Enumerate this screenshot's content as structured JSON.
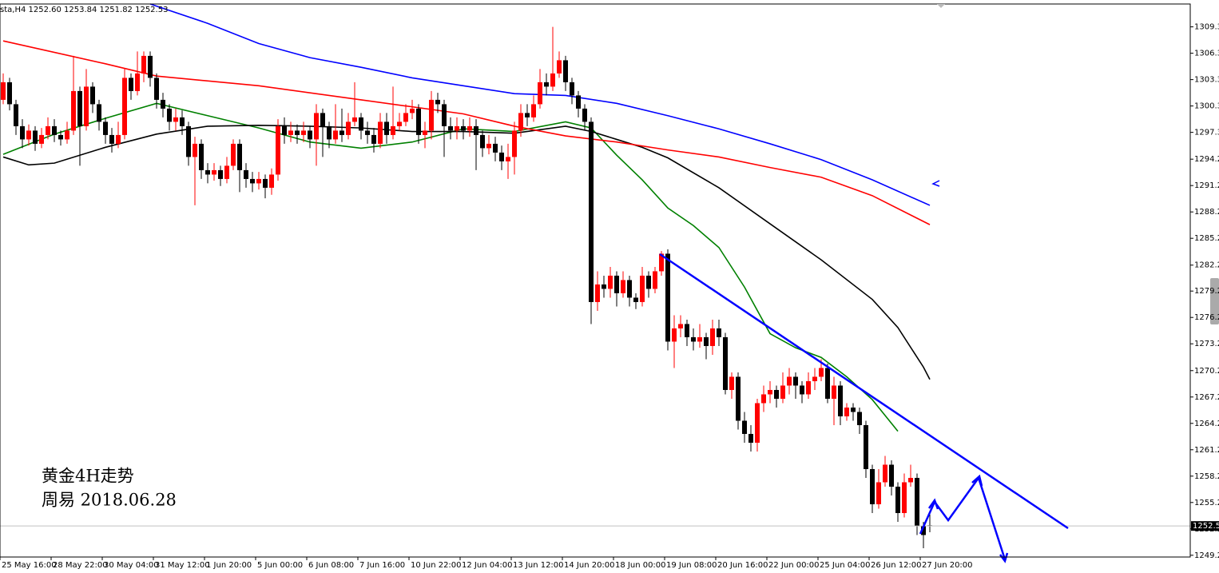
{
  "chart_data": {
    "type": "candlestick",
    "title": "sta,H4 1252.60 1253.84 1251.82 1252.53",
    "annotations": [
      "黄金4H走势",
      "周易 2018.06.28"
    ],
    "up_color": "#ff0000",
    "down_color": "#000000",
    "categories": [
      "25 May 16:00",
      null,
      null,
      null,
      null,
      null,
      null,
      null,
      "28 May 22:00",
      null,
      null,
      null,
      null,
      null,
      null,
      null,
      "30 May 04:00",
      null,
      null,
      null,
      null,
      null,
      null,
      null,
      "31 May 12:00",
      null,
      null,
      null,
      null,
      null,
      null,
      null,
      "1 Jun 20:00",
      null,
      null,
      null,
      null,
      null,
      null,
      null,
      "5 Jun 00:00",
      null,
      null,
      null,
      null,
      null,
      null,
      null,
      "6 Jun 08:00",
      null,
      null,
      null,
      null,
      null,
      null,
      null,
      "7 Jun 16:00",
      null,
      null,
      null,
      null,
      null,
      null,
      null,
      "10 Jun 22:00",
      null,
      null,
      null,
      null,
      null,
      null,
      null,
      "12 Jun 04:00",
      null,
      null,
      null,
      null,
      null,
      null,
      null,
      "13 Jun 12:00",
      null,
      null,
      null,
      null,
      null,
      null,
      null,
      "14 Jun 20:00",
      null,
      null,
      null,
      null,
      null,
      null,
      null,
      "18 Jun 00:00",
      null,
      null,
      null,
      null,
      null,
      null,
      null,
      "19 Jun 08:00",
      null,
      null,
      null,
      null,
      null,
      null,
      null,
      "20 Jun 16:00",
      null,
      null,
      null,
      null,
      null,
      null,
      null,
      "22 Jun 00:00",
      null,
      null,
      null,
      null,
      null,
      null,
      null,
      "25 Jun 04:00",
      null,
      null,
      null,
      null,
      null,
      null,
      null,
      "26 Jun 12:00",
      null,
      null,
      null,
      null,
      null,
      null,
      null,
      "27 Jun 20:00",
      null
    ],
    "open": [
      1301.0,
      1303.0,
      1300.5,
      1298.0,
      1296.5,
      1297.5,
      1296.0,
      1297.0,
      1298.0,
      1297.0,
      1296.5,
      1297.5,
      1302.0,
      1298.0,
      1302.5,
      1300.5,
      1298.5,
      1297.0,
      1296.0,
      1297.0,
      1303.5,
      1302.0,
      1304.0,
      1306.0,
      1303.5,
      1301.0,
      1300.0,
      1298.5,
      1299.0,
      1298.0,
      1294.5,
      1296.0,
      1293.0,
      1292.5,
      1293.0,
      1292.0,
      1293.5,
      1296.0,
      1293.0,
      1292.0,
      1291.5,
      1292.0,
      1291.0,
      1292.5,
      1298.0,
      1297.0,
      1297.5,
      1297.0,
      1297.5,
      1296.5,
      1299.5,
      1298.0,
      1296.5,
      1297.5,
      1297.0,
      1298.5,
      1299.0,
      1297.5,
      1297.0,
      1296.0,
      1298.5,
      1297.0,
      1298.0,
      1298.5,
      1299.5,
      1300.0,
      1297.0,
      1297.5,
      1301.0,
      1300.5,
      1298.0,
      1297.5,
      1298.0,
      1297.5,
      1298.0,
      1297.0,
      1295.5,
      1296.0,
      1295.0,
      1294.0,
      1294.5,
      1297.5,
      1299.5,
      1299.0,
      1300.5,
      1303.0,
      1302.5,
      1304.0,
      1305.5,
      1303.0,
      1301.5,
      1300.0,
      1298.5,
      1278.0,
      1280.0,
      1279.5,
      1281.0,
      1279.0,
      1280.5,
      1278.5,
      1278.0,
      1281.0,
      1279.5,
      1281.5,
      1283.5,
      1273.5,
      1275.0,
      1275.5,
      1274.0,
      1273.5,
      1274.0,
      1273.0,
      1275.0,
      1274.0,
      1268.0,
      1269.5,
      1264.5,
      1263.0,
      1262.0,
      1266.5,
      1267.5,
      1268.0,
      1267.0,
      1268.5,
      1269.5,
      1268.5,
      1267.5,
      1269.0,
      1269.5,
      1270.5,
      1267.0,
      1268.5,
      1265.0,
      1266.0,
      1265.5,
      1264.0,
      1259.0,
      1255.0,
      1257.5,
      1259.5,
      1257.0,
      1254.0,
      1257.5,
      1258.0,
      1252.5,
      1252.6
    ],
    "high": [
      1304.0,
      1303.5,
      1301.0,
      1298.8,
      1298.2,
      1298.0,
      1297.8,
      1299.0,
      1298.8,
      1297.5,
      1298.5,
      1306.0,
      1302.5,
      1304.5,
      1303.0,
      1301.0,
      1299.0,
      1297.8,
      1298.5,
      1304.5,
      1304.0,
      1306.5,
      1306.5,
      1306.5,
      1304.0,
      1301.8,
      1300.5,
      1300.0,
      1299.8,
      1298.5,
      1296.8,
      1296.5,
      1293.8,
      1293.8,
      1293.5,
      1294.5,
      1296.5,
      1296.5,
      1293.8,
      1292.8,
      1292.8,
      1292.5,
      1293.2,
      1298.8,
      1299.0,
      1298.5,
      1298.2,
      1298.5,
      1298.0,
      1300.5,
      1300.0,
      1298.5,
      1300.5,
      1300.0,
      1299.5,
      1303.0,
      1299.5,
      1298.5,
      1297.8,
      1299.5,
      1299.5,
      1302.5,
      1299.5,
      1300.5,
      1301.0,
      1300.5,
      1298.5,
      1302.0,
      1301.8,
      1301.0,
      1299.0,
      1299.0,
      1298.8,
      1299.0,
      1298.8,
      1297.5,
      1297.0,
      1296.8,
      1295.8,
      1296.0,
      1298.5,
      1300.5,
      1300.5,
      1301.5,
      1304.5,
      1304.0,
      1309.3,
      1306.5,
      1306.0,
      1303.5,
      1302.0,
      1300.5,
      1299.0,
      1281.5,
      1281.0,
      1282.0,
      1281.5,
      1281.5,
      1281.0,
      1279.0,
      1282.0,
      1281.5,
      1282.0,
      1283.8,
      1284.0,
      1276.5,
      1276.5,
      1276.0,
      1275.0,
      1275.5,
      1274.5,
      1276.0,
      1276.0,
      1274.5,
      1270.0,
      1270.0,
      1265.5,
      1264.0,
      1267.0,
      1268.5,
      1269.0,
      1268.5,
      1270.0,
      1270.5,
      1270.0,
      1269.0,
      1270.0,
      1270.5,
      1271.5,
      1271.0,
      1269.5,
      1269.0,
      1266.5,
      1266.5,
      1266.0,
      1264.5,
      1259.5,
      1259.0,
      1260.5,
      1260.0,
      1257.5,
      1258.5,
      1259.5,
      1258.5,
      1253.0,
      1253.84
    ],
    "low": [
      1300.5,
      1299.8,
      1297.0,
      1295.5,
      1295.8,
      1295.2,
      1295.5,
      1296.5,
      1296.2,
      1295.8,
      1296.0,
      1297.0,
      1293.5,
      1297.5,
      1299.5,
      1297.5,
      1296.0,
      1295.0,
      1295.5,
      1296.5,
      1301.0,
      1301.5,
      1303.0,
      1302.5,
      1300.0,
      1299.0,
      1297.5,
      1297.5,
      1297.0,
      1293.5,
      1289.0,
      1292.0,
      1291.5,
      1291.8,
      1291.2,
      1291.5,
      1293.0,
      1290.5,
      1291.0,
      1290.5,
      1290.8,
      1289.8,
      1290.2,
      1291.8,
      1296.0,
      1296.2,
      1296.0,
      1296.2,
      1295.5,
      1293.5,
      1294.5,
      1295.5,
      1296.0,
      1296.2,
      1296.5,
      1298.0,
      1296.5,
      1296.0,
      1295.0,
      1295.5,
      1296.0,
      1296.5,
      1297.5,
      1298.0,
      1298.8,
      1296.0,
      1295.5,
      1296.5,
      1299.5,
      1294.5,
      1296.5,
      1296.5,
      1296.5,
      1296.8,
      1293.0,
      1294.5,
      1294.8,
      1294.0,
      1293.0,
      1292.0,
      1292.5,
      1296.8,
      1298.0,
      1298.5,
      1300.0,
      1301.5,
      1302.0,
      1303.5,
      1302.0,
      1300.5,
      1299.0,
      1297.5,
      1275.5,
      1277.0,
      1278.5,
      1278.5,
      1277.5,
      1278.5,
      1277.5,
      1277.2,
      1277.5,
      1278.5,
      1279.0,
      1281.0,
      1272.5,
      1270.5,
      1274.0,
      1273.0,
      1272.5,
      1272.8,
      1271.5,
      1272.0,
      1273.0,
      1267.5,
      1267.0,
      1263.5,
      1262.0,
      1261.0,
      1261.0,
      1265.5,
      1266.5,
      1266.0,
      1266.5,
      1267.5,
      1267.0,
      1266.5,
      1267.0,
      1268.0,
      1269.0,
      1266.5,
      1264.0,
      1264.0,
      1264.5,
      1264.5,
      1263.0,
      1258.0,
      1254.0,
      1254.5,
      1257.0,
      1256.0,
      1253.0,
      1253.5,
      1257.0,
      1251.5,
      1250.0,
      1251.82
    ],
    "close": [
      1303.0,
      1300.5,
      1298.0,
      1296.5,
      1297.5,
      1296.0,
      1297.0,
      1298.0,
      1297.0,
      1296.5,
      1297.5,
      1302.0,
      1298.0,
      1302.5,
      1300.5,
      1298.5,
      1297.0,
      1296.0,
      1297.0,
      1303.5,
      1302.0,
      1304.0,
      1306.0,
      1303.5,
      1301.0,
      1300.0,
      1298.5,
      1299.0,
      1298.0,
      1294.5,
      1296.0,
      1293.0,
      1292.5,
      1293.0,
      1292.0,
      1293.5,
      1296.0,
      1293.0,
      1292.0,
      1291.5,
      1292.0,
      1291.0,
      1292.5,
      1298.0,
      1297.0,
      1297.5,
      1297.0,
      1297.5,
      1296.5,
      1299.5,
      1298.0,
      1296.5,
      1297.5,
      1297.0,
      1298.5,
      1299.0,
      1297.5,
      1297.0,
      1296.0,
      1298.5,
      1297.0,
      1298.0,
      1298.5,
      1299.5,
      1300.0,
      1297.0,
      1297.5,
      1301.0,
      1300.5,
      1298.0,
      1297.5,
      1298.0,
      1297.5,
      1298.0,
      1297.0,
      1295.5,
      1296.0,
      1295.0,
      1294.0,
      1294.5,
      1297.5,
      1299.5,
      1299.0,
      1300.5,
      1303.0,
      1302.5,
      1304.0,
      1305.5,
      1303.0,
      1301.5,
      1300.0,
      1298.5,
      1278.0,
      1280.0,
      1279.5,
      1281.0,
      1279.0,
      1280.5,
      1278.5,
      1278.0,
      1281.0,
      1279.5,
      1281.5,
      1283.5,
      1273.5,
      1275.0,
      1275.5,
      1274.0,
      1273.5,
      1274.0,
      1273.0,
      1275.0,
      1274.0,
      1268.0,
      1269.5,
      1264.5,
      1263.0,
      1262.0,
      1266.5,
      1267.5,
      1268.0,
      1267.0,
      1268.5,
      1269.5,
      1268.5,
      1267.5,
      1269.0,
      1269.5,
      1270.5,
      1267.0,
      1268.5,
      1265.0,
      1266.0,
      1265.5,
      1264.0,
      1259.0,
      1255.0,
      1257.5,
      1259.5,
      1257.0,
      1254.0,
      1257.5,
      1258.0,
      1252.5,
      1251.5,
      1252.53
    ],
    "series": [
      {
        "color": "#008000",
        "x": [
          0,
          8,
          16,
          24,
          32,
          40,
          48,
          56,
          64,
          72,
          80,
          88,
          92,
          96,
          100,
          104,
          108,
          112,
          116,
          120,
          124,
          128,
          132,
          136,
          140
        ],
        "values": [
          1294.8,
          1297.1,
          1298.9,
          1300.6,
          1299.2,
          1297.8,
          1296.2,
          1295.5,
          1296.2,
          1297.7,
          1297.4,
          1298.5,
          1297.8,
          1294.7,
          1291.9,
          1288.7,
          1286.7,
          1284.2,
          1279.7,
          1274.4,
          1272.8,
          1271.7,
          1269.5,
          1266.9,
          1263.3
        ]
      },
      {
        "color": "#000000",
        "x": [
          0,
          4,
          8,
          16,
          24,
          32,
          40,
          48,
          56,
          64,
          72,
          80,
          88,
          92,
          96,
          100,
          104,
          112,
          120,
          128,
          136,
          140,
          144,
          145
        ],
        "values": [
          1294.5,
          1293.6,
          1293.8,
          1295.6,
          1297.1,
          1298.0,
          1298.1,
          1298.0,
          1297.8,
          1297.4,
          1297.4,
          1297.2,
          1298.0,
          1297.4,
          1296.5,
          1295.6,
          1294.4,
          1291.0,
          1286.9,
          1282.8,
          1278.3,
          1275.1,
          1270.6,
          1269.2
        ]
      },
      {
        "color": "#ff0000",
        "x": [
          0,
          16,
          24,
          40,
          56,
          72,
          80,
          88,
          96,
          104,
          112,
          120,
          128,
          136,
          145
        ],
        "values": [
          1307.7,
          1305.1,
          1303.7,
          1302.6,
          1301.0,
          1299.4,
          1298.0,
          1296.9,
          1296.2,
          1295.3,
          1294.5,
          1293.3,
          1292.2,
          1290.1,
          1286.8
        ]
      },
      {
        "color": "#0000ff",
        "x": [
          23,
          32,
          40,
          48,
          56,
          64,
          72,
          80,
          88,
          96,
          104,
          112,
          120,
          128,
          136,
          145
        ],
        "values": [
          1311.9,
          1309.7,
          1307.4,
          1305.8,
          1304.7,
          1303.5,
          1302.6,
          1301.7,
          1301.5,
          1300.6,
          1299.2,
          1297.7,
          1296.0,
          1294.2,
          1291.9,
          1289.0
        ]
      }
    ],
    "ylim": [
      1249.0,
      1311.9
    ],
    "yticks": [
      {
        "value": 1249.2,
        "label": "1249.20"
      },
      {
        "value": 1252.2,
        "label": "1252.20"
      },
      {
        "value": 1255.2,
        "label": "1255.20"
      },
      {
        "value": 1258.2,
        "label": "1258.20"
      },
      {
        "value": 1261.2,
        "label": "1261.20"
      },
      {
        "value": 1264.2,
        "label": "1264.20"
      },
      {
        "value": 1267.2,
        "label": "1267.20"
      },
      {
        "value": 1270.2,
        "label": "1270.20"
      },
      1273.25,
      1276.25,
      1279.25,
      {
        "value": 1282.2,
        "label": "1282.20"
      },
      1285.25,
      1288.25,
      1291.25,
      1294.25,
      {
        "value": 1297.3,
        "label": "1297.30"
      },
      {
        "value": 1300.3,
        "label": "1300.30"
      },
      {
        "value": 1303.3,
        "label": "1303.30"
      },
      {
        "value": 1306.3,
        "label": "1306.30"
      },
      {
        "value": 1309.3,
        "label": "1309.30"
      }
    ]
  }
}
